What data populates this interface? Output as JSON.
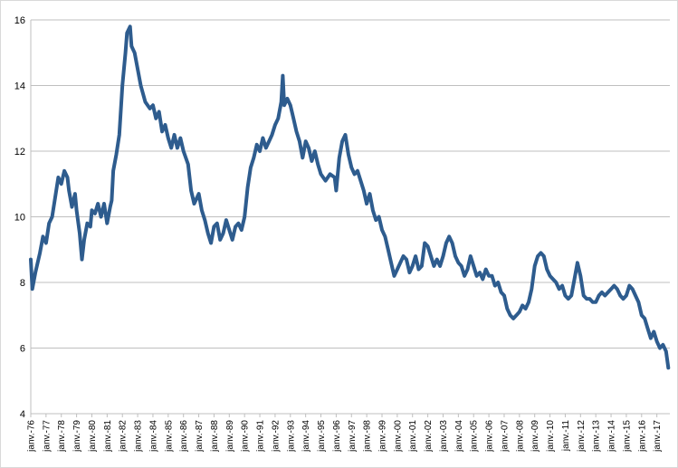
{
  "chart_data": {
    "type": "line",
    "title": "",
    "xlabel": "",
    "ylabel": "",
    "ylim": [
      4,
      16
    ],
    "yticks": [
      "4",
      "6",
      "8",
      "10",
      "12",
      "14",
      "16"
    ],
    "grid": "horizontal",
    "legend": "none",
    "x_start": "janv.-76",
    "x_end": "oct.-17",
    "xticks": [
      "janv.-76",
      "janv.-77",
      "janv.-78",
      "janv.-79",
      "janv.-80",
      "janv.-81",
      "janv.-82",
      "janv.-83",
      "janv.-84",
      "janv.-85",
      "janv.-86",
      "janv.-87",
      "janv.-88",
      "janv.-89",
      "janv.-90",
      "janv.-91",
      "janv.-92",
      "janv.-93",
      "janv.-94",
      "janv.-95",
      "janv.-96",
      "janv.-97",
      "janv.-98",
      "janv.-99",
      "janv.-00",
      "janv.-01",
      "janv.-02",
      "janv.-03",
      "janv.-04",
      "janv.-05",
      "janv.-06",
      "janv.-07",
      "janv.-08",
      "janv.-09",
      "janv.-10",
      "janv.-11",
      "janv.-12",
      "janv.-13",
      "janv.-14",
      "janv.-15",
      "janv.-16",
      "janv.-17"
    ],
    "series": [
      {
        "color": "#2e5c8e",
        "points": [
          [
            1976.0,
            8.7
          ],
          [
            1976.1,
            7.8
          ],
          [
            1976.3,
            8.3
          ],
          [
            1976.6,
            8.9
          ],
          [
            1976.8,
            9.4
          ],
          [
            1977.0,
            9.2
          ],
          [
            1977.2,
            9.8
          ],
          [
            1977.4,
            10.0
          ],
          [
            1977.6,
            10.6
          ],
          [
            1977.8,
            11.2
          ],
          [
            1978.0,
            11.0
          ],
          [
            1978.2,
            11.4
          ],
          [
            1978.4,
            11.2
          ],
          [
            1978.5,
            10.8
          ],
          [
            1978.7,
            10.3
          ],
          [
            1978.9,
            10.7
          ],
          [
            1979.0,
            10.2
          ],
          [
            1979.2,
            9.5
          ],
          [
            1979.35,
            8.7
          ],
          [
            1979.5,
            9.3
          ],
          [
            1979.7,
            9.8
          ],
          [
            1979.9,
            9.7
          ],
          [
            1980.0,
            10.2
          ],
          [
            1980.2,
            10.1
          ],
          [
            1980.4,
            10.4
          ],
          [
            1980.6,
            10.0
          ],
          [
            1980.8,
            10.4
          ],
          [
            1981.0,
            9.8
          ],
          [
            1981.2,
            10.3
          ],
          [
            1981.3,
            10.5
          ],
          [
            1981.4,
            11.4
          ],
          [
            1981.6,
            11.9
          ],
          [
            1981.8,
            12.5
          ],
          [
            1982.0,
            14.0
          ],
          [
            1982.2,
            15.0
          ],
          [
            1982.3,
            15.6
          ],
          [
            1982.5,
            15.8
          ],
          [
            1982.6,
            15.2
          ],
          [
            1982.8,
            15.0
          ],
          [
            1983.0,
            14.5
          ],
          [
            1983.2,
            14.0
          ],
          [
            1983.5,
            13.5
          ],
          [
            1983.8,
            13.3
          ],
          [
            1984.0,
            13.4
          ],
          [
            1984.2,
            13.0
          ],
          [
            1984.4,
            13.2
          ],
          [
            1984.6,
            12.6
          ],
          [
            1984.8,
            12.8
          ],
          [
            1985.0,
            12.4
          ],
          [
            1985.2,
            12.1
          ],
          [
            1985.4,
            12.5
          ],
          [
            1985.6,
            12.1
          ],
          [
            1985.8,
            12.4
          ],
          [
            1986.0,
            12.0
          ],
          [
            1986.3,
            11.6
          ],
          [
            1986.5,
            10.8
          ],
          [
            1986.7,
            10.4
          ],
          [
            1987.0,
            10.7
          ],
          [
            1987.2,
            10.2
          ],
          [
            1987.4,
            9.9
          ],
          [
            1987.6,
            9.5
          ],
          [
            1987.8,
            9.2
          ],
          [
            1988.0,
            9.7
          ],
          [
            1988.2,
            9.8
          ],
          [
            1988.4,
            9.3
          ],
          [
            1988.6,
            9.5
          ],
          [
            1988.8,
            9.9
          ],
          [
            1989.0,
            9.6
          ],
          [
            1989.2,
            9.3
          ],
          [
            1989.4,
            9.7
          ],
          [
            1989.6,
            9.8
          ],
          [
            1989.8,
            9.6
          ],
          [
            1990.0,
            10.0
          ],
          [
            1990.2,
            10.9
          ],
          [
            1990.4,
            11.5
          ],
          [
            1990.6,
            11.8
          ],
          [
            1990.8,
            12.2
          ],
          [
            1991.0,
            12.0
          ],
          [
            1991.2,
            12.4
          ],
          [
            1991.4,
            12.1
          ],
          [
            1991.6,
            12.3
          ],
          [
            1991.8,
            12.5
          ],
          [
            1992.0,
            12.8
          ],
          [
            1992.2,
            13.0
          ],
          [
            1992.4,
            13.5
          ],
          [
            1992.5,
            14.3
          ],
          [
            1992.6,
            13.4
          ],
          [
            1992.8,
            13.6
          ],
          [
            1993.0,
            13.4
          ],
          [
            1993.2,
            13.0
          ],
          [
            1993.4,
            12.6
          ],
          [
            1993.6,
            12.3
          ],
          [
            1993.8,
            11.8
          ],
          [
            1994.0,
            12.3
          ],
          [
            1994.2,
            12.1
          ],
          [
            1994.4,
            11.7
          ],
          [
            1994.6,
            12.0
          ],
          [
            1994.8,
            11.6
          ],
          [
            1995.0,
            11.3
          ],
          [
            1995.3,
            11.1
          ],
          [
            1995.6,
            11.3
          ],
          [
            1995.9,
            11.2
          ],
          [
            1996.0,
            10.8
          ],
          [
            1996.2,
            11.8
          ],
          [
            1996.4,
            12.3
          ],
          [
            1996.6,
            12.5
          ],
          [
            1996.8,
            11.9
          ],
          [
            1997.0,
            11.5
          ],
          [
            1997.2,
            11.3
          ],
          [
            1997.4,
            11.4
          ],
          [
            1997.6,
            11.1
          ],
          [
            1997.8,
            10.8
          ],
          [
            1998.0,
            10.4
          ],
          [
            1998.2,
            10.7
          ],
          [
            1998.4,
            10.2
          ],
          [
            1998.6,
            9.9
          ],
          [
            1998.8,
            10.0
          ],
          [
            1999.0,
            9.6
          ],
          [
            1999.2,
            9.4
          ],
          [
            1999.4,
            9.0
          ],
          [
            1999.6,
            8.6
          ],
          [
            1999.8,
            8.2
          ],
          [
            2000.0,
            8.4
          ],
          [
            2000.2,
            8.6
          ],
          [
            2000.4,
            8.8
          ],
          [
            2000.6,
            8.7
          ],
          [
            2000.8,
            8.3
          ],
          [
            2001.0,
            8.5
          ],
          [
            2001.2,
            8.8
          ],
          [
            2001.4,
            8.4
          ],
          [
            2001.6,
            8.5
          ],
          [
            2001.8,
            9.2
          ],
          [
            2002.0,
            9.1
          ],
          [
            2002.2,
            8.8
          ],
          [
            2002.4,
            8.5
          ],
          [
            2002.6,
            8.7
          ],
          [
            2002.8,
            8.5
          ],
          [
            2003.0,
            8.8
          ],
          [
            2003.2,
            9.2
          ],
          [
            2003.4,
            9.4
          ],
          [
            2003.6,
            9.2
          ],
          [
            2003.8,
            8.8
          ],
          [
            2004.0,
            8.6
          ],
          [
            2004.2,
            8.5
          ],
          [
            2004.4,
            8.2
          ],
          [
            2004.6,
            8.4
          ],
          [
            2004.8,
            8.8
          ],
          [
            2005.0,
            8.5
          ],
          [
            2005.2,
            8.2
          ],
          [
            2005.4,
            8.3
          ],
          [
            2005.6,
            8.1
          ],
          [
            2005.8,
            8.4
          ],
          [
            2006.0,
            8.2
          ],
          [
            2006.2,
            8.2
          ],
          [
            2006.4,
            7.9
          ],
          [
            2006.6,
            8.0
          ],
          [
            2006.8,
            7.7
          ],
          [
            2007.0,
            7.6
          ],
          [
            2007.2,
            7.2
          ],
          [
            2007.4,
            7.0
          ],
          [
            2007.6,
            6.9
          ],
          [
            2007.8,
            7.0
          ],
          [
            2008.0,
            7.1
          ],
          [
            2008.2,
            7.3
          ],
          [
            2008.4,
            7.2
          ],
          [
            2008.6,
            7.4
          ],
          [
            2008.8,
            7.8
          ],
          [
            2009.0,
            8.5
          ],
          [
            2009.2,
            8.8
          ],
          [
            2009.4,
            8.9
          ],
          [
            2009.6,
            8.8
          ],
          [
            2009.8,
            8.4
          ],
          [
            2010.0,
            8.2
          ],
          [
            2010.2,
            8.1
          ],
          [
            2010.4,
            8.0
          ],
          [
            2010.6,
            7.8
          ],
          [
            2010.8,
            7.9
          ],
          [
            2011.0,
            7.6
          ],
          [
            2011.2,
            7.5
          ],
          [
            2011.4,
            7.6
          ],
          [
            2011.6,
            8.1
          ],
          [
            2011.8,
            8.6
          ],
          [
            2012.0,
            8.2
          ],
          [
            2012.2,
            7.6
          ],
          [
            2012.4,
            7.5
          ],
          [
            2012.6,
            7.5
          ],
          [
            2012.8,
            7.4
          ],
          [
            2013.0,
            7.4
          ],
          [
            2013.2,
            7.6
          ],
          [
            2013.4,
            7.7
          ],
          [
            2013.6,
            7.6
          ],
          [
            2013.8,
            7.7
          ],
          [
            2014.0,
            7.8
          ],
          [
            2014.2,
            7.9
          ],
          [
            2014.4,
            7.8
          ],
          [
            2014.6,
            7.6
          ],
          [
            2014.8,
            7.5
          ],
          [
            2015.0,
            7.6
          ],
          [
            2015.2,
            7.9
          ],
          [
            2015.4,
            7.8
          ],
          [
            2015.6,
            7.6
          ],
          [
            2015.8,
            7.4
          ],
          [
            2016.0,
            7.0
          ],
          [
            2016.2,
            6.9
          ],
          [
            2016.4,
            6.6
          ],
          [
            2016.6,
            6.3
          ],
          [
            2016.8,
            6.5
          ],
          [
            2017.0,
            6.2
          ],
          [
            2017.2,
            6.0
          ],
          [
            2017.4,
            6.1
          ],
          [
            2017.6,
            5.9
          ],
          [
            2017.75,
            5.4
          ]
        ]
      }
    ]
  }
}
